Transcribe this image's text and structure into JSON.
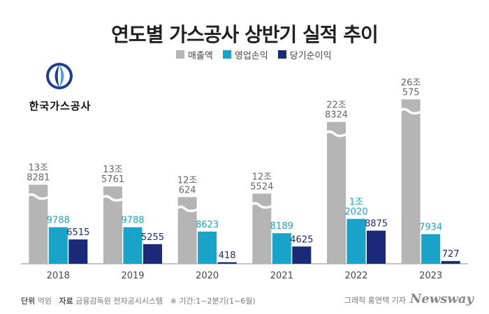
{
  "title": "연도별 가스공사 상반기 실적 추이",
  "logo_text": "한국가스공사",
  "footer": {
    "unit_label": "단위",
    "unit_value": "억원",
    "source_label": "자료",
    "source_value": "금융감독원 전자공시시스템",
    "note": "※ 기간:1~2분기(1~6월)",
    "graphic_credit": "그래픽 홍연택 기자",
    "brand": "Newsway"
  },
  "colors": {
    "revenue": "#b5b5b5",
    "operating_profit": "#1aa3c8",
    "net_income": "#1b2a78"
  },
  "chart_data": {
    "type": "bar",
    "categories": [
      "2018",
      "2019",
      "2020",
      "2021",
      "2022",
      "2023"
    ],
    "series": [
      {
        "name": "매출액",
        "values": [
          138281,
          135761,
          120624,
          125524,
          228324,
          260575
        ],
        "labels": [
          [
            "13조",
            "8281"
          ],
          [
            "13조",
            "5761"
          ],
          [
            "12조",
            "624"
          ],
          [
            "12조",
            "5524"
          ],
          [
            "22조",
            "8324"
          ],
          [
            "26조",
            "575"
          ]
        ],
        "axis_break": true
      },
      {
        "name": "영업손익",
        "values": [
          9788,
          9788,
          8623,
          8189,
          12020,
          7934
        ],
        "labels": [
          [
            "9788"
          ],
          [
            "9788"
          ],
          [
            "8623"
          ],
          [
            "8189"
          ],
          [
            "1조",
            "2020"
          ],
          [
            "7934"
          ]
        ]
      },
      {
        "name": "당기순이익",
        "values": [
          6515,
          5255,
          418,
          4625,
          8875,
          727
        ],
        "labels": [
          [
            "6515"
          ],
          [
            "5255"
          ],
          [
            "418"
          ],
          [
            "4625"
          ],
          [
            "8875"
          ],
          [
            "727"
          ]
        ]
      }
    ],
    "title": "연도별 가스공사 상반기 실적 추이",
    "legend_position": "top",
    "grid": false
  }
}
